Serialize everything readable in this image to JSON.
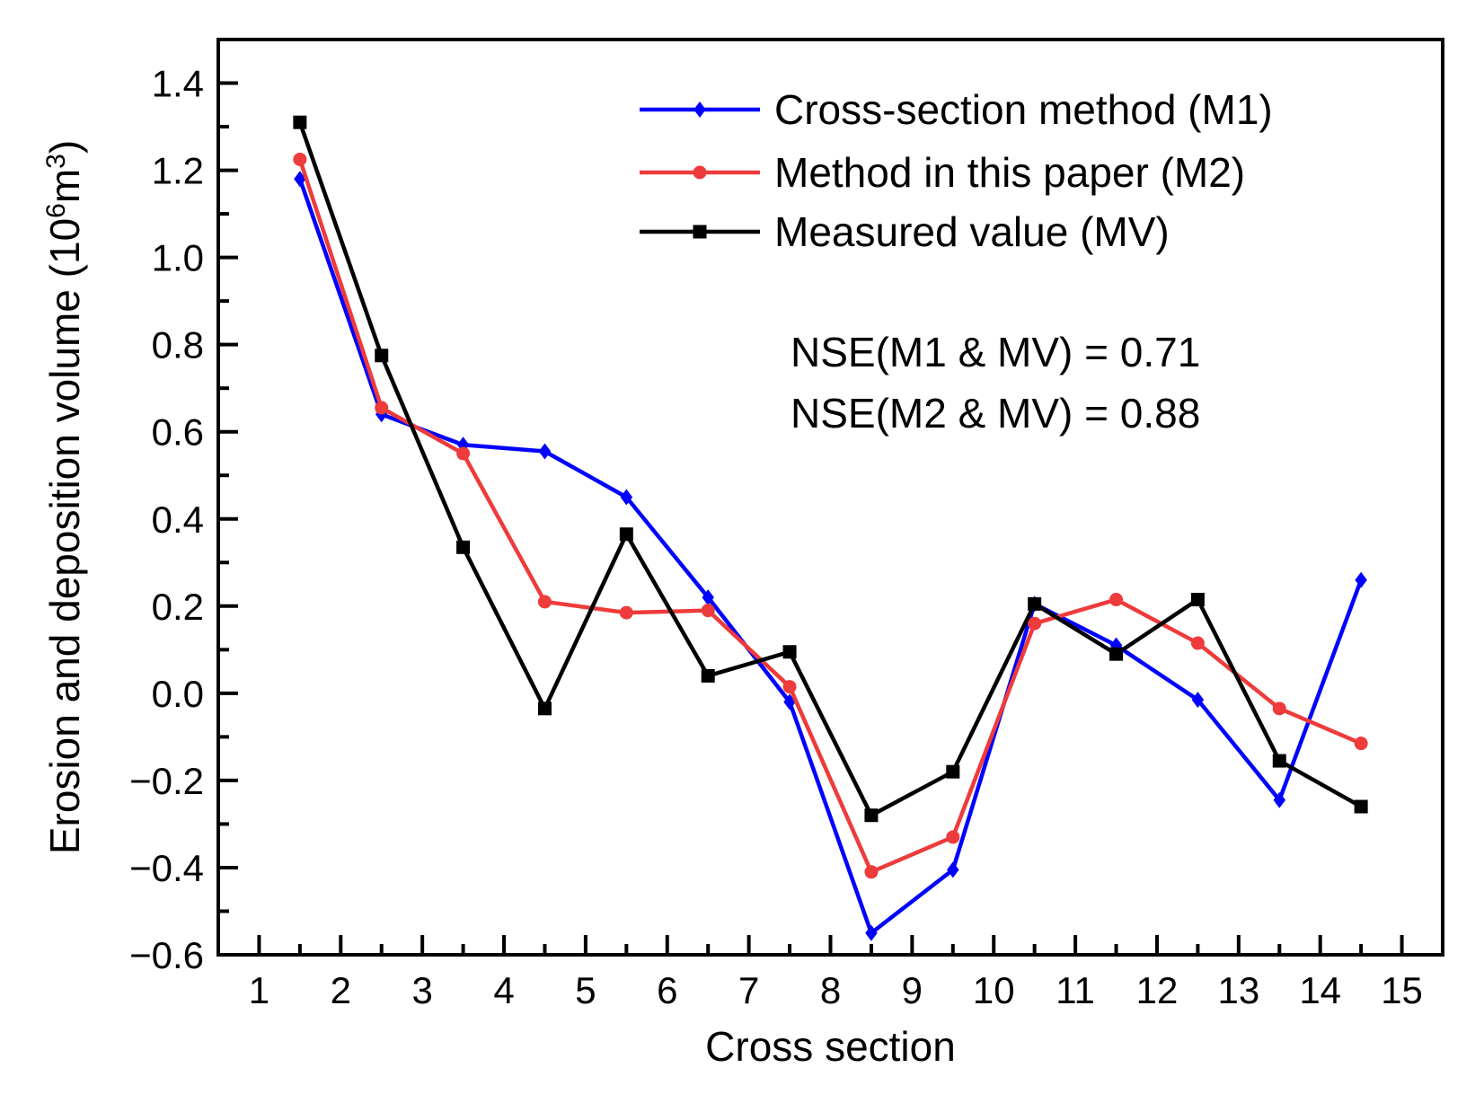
{
  "chart_data": {
    "type": "line",
    "title": "",
    "xlabel": "Cross section",
    "ylabel": {
      "main": "Erosion and deposition volume (10",
      "sup1": "6",
      "mid": "m",
      "sup2": "3",
      "end": ")"
    },
    "xlim": [
      0.5,
      15.5
    ],
    "ylim": [
      -0.6,
      1.5
    ],
    "xticks": [
      1,
      2,
      3,
      4,
      5,
      6,
      7,
      8,
      9,
      10,
      11,
      12,
      13,
      14,
      15
    ],
    "xtick_labels": [
      "1",
      "2",
      "3",
      "4",
      "5",
      "6",
      "7",
      "8",
      "9",
      "10",
      "11",
      "12",
      "13",
      "14",
      "15"
    ],
    "yticks": [
      -0.6,
      -0.4,
      -0.2,
      0.0,
      0.2,
      0.4,
      0.6,
      0.8,
      1.0,
      1.2,
      1.4
    ],
    "ytick_labels": [
      "−0.6",
      "−0.4",
      "−0.2",
      "0.0",
      "0.2",
      "0.4",
      "0.6",
      "0.8",
      "1.0",
      "1.2",
      "1.4"
    ],
    "x": [
      1.5,
      2.5,
      3.5,
      4.5,
      5.5,
      6.5,
      7.5,
      8.5,
      9.5,
      10.5,
      11.5,
      12.5,
      13.5,
      14.5
    ],
    "series": [
      {
        "name": "Cross-section method (M1)",
        "color": "#0000ff",
        "marker": "diamond",
        "values": [
          1.18,
          0.64,
          0.57,
          0.555,
          0.45,
          0.22,
          -0.02,
          -0.55,
          -0.405,
          0.205,
          0.11,
          -0.015,
          -0.245,
          0.26
        ]
      },
      {
        "name": "Method in this paper (M2)",
        "color": "#ee3b3b",
        "marker": "circle",
        "values": [
          1.225,
          0.655,
          0.55,
          0.21,
          0.185,
          0.19,
          0.015,
          -0.41,
          -0.33,
          0.16,
          0.215,
          0.115,
          -0.035,
          -0.115
        ]
      },
      {
        "name": "Measured value (MV)",
        "color": "#000000",
        "marker": "square",
        "values": [
          1.31,
          0.775,
          0.335,
          -0.035,
          0.365,
          0.04,
          0.095,
          -0.28,
          -0.18,
          0.205,
          0.09,
          0.215,
          -0.155,
          -0.26
        ]
      }
    ],
    "legend_position": "top-right",
    "annotations": [
      "NSE(M1 & MV) = 0.71",
      "NSE(M2 & MV) = 0.88"
    ]
  }
}
